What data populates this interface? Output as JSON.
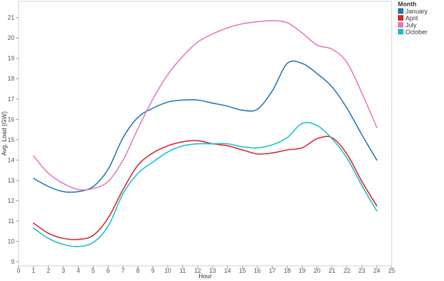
{
  "chart_data": {
    "type": "line",
    "xlabel": "Hour",
    "ylabel": "Avg. Load (GW)",
    "xlim": [
      0,
      25
    ],
    "ylim": [
      8.8,
      21.8
    ],
    "xticks": [
      0,
      1,
      2,
      3,
      4,
      5,
      6,
      7,
      8,
      9,
      10,
      11,
      12,
      13,
      14,
      15,
      16,
      17,
      18,
      19,
      20,
      21,
      22,
      23,
      24,
      25
    ],
    "yticks": [
      9,
      10,
      11,
      12,
      13,
      14,
      15,
      16,
      17,
      18,
      19,
      20,
      21
    ],
    "grid": false,
    "legend_title": "Month",
    "legend_position": "top-right",
    "x": [
      1,
      2,
      3,
      4,
      5,
      6,
      7,
      8,
      9,
      10,
      11,
      12,
      13,
      14,
      15,
      16,
      17,
      18,
      19,
      20,
      21,
      22,
      23,
      24
    ],
    "series": [
      {
        "name": "January",
        "color": "#1f77b4",
        "values": [
          13.1,
          12.7,
          12.45,
          12.45,
          12.7,
          13.55,
          15.1,
          16.1,
          16.55,
          16.85,
          16.95,
          16.95,
          16.8,
          16.65,
          16.45,
          16.5,
          17.4,
          18.75,
          18.75,
          18.25,
          17.6,
          16.55,
          15.25,
          14.0
        ]
      },
      {
        "name": "April",
        "color": "#d62728",
        "values": [
          10.9,
          10.4,
          10.15,
          10.1,
          10.3,
          11.15,
          12.55,
          13.75,
          14.35,
          14.7,
          14.9,
          14.95,
          14.8,
          14.7,
          14.5,
          14.3,
          14.35,
          14.5,
          14.6,
          15.05,
          15.1,
          14.3,
          12.95,
          11.75
        ]
      },
      {
        "name": "July",
        "color": "#e377c2",
        "values": [
          14.2,
          13.35,
          12.85,
          12.55,
          12.6,
          12.95,
          14.0,
          15.55,
          17.0,
          18.2,
          19.1,
          19.8,
          20.2,
          20.5,
          20.7,
          20.8,
          20.85,
          20.75,
          20.25,
          19.65,
          19.45,
          18.8,
          17.3,
          15.6
        ]
      },
      {
        "name": "October",
        "color": "#17becf",
        "values": [
          10.65,
          10.15,
          9.85,
          9.75,
          9.95,
          10.75,
          12.35,
          13.35,
          13.9,
          14.4,
          14.7,
          14.8,
          14.8,
          14.8,
          14.65,
          14.6,
          14.75,
          15.1,
          15.8,
          15.7,
          15.05,
          14.1,
          12.75,
          11.5
        ]
      }
    ]
  }
}
